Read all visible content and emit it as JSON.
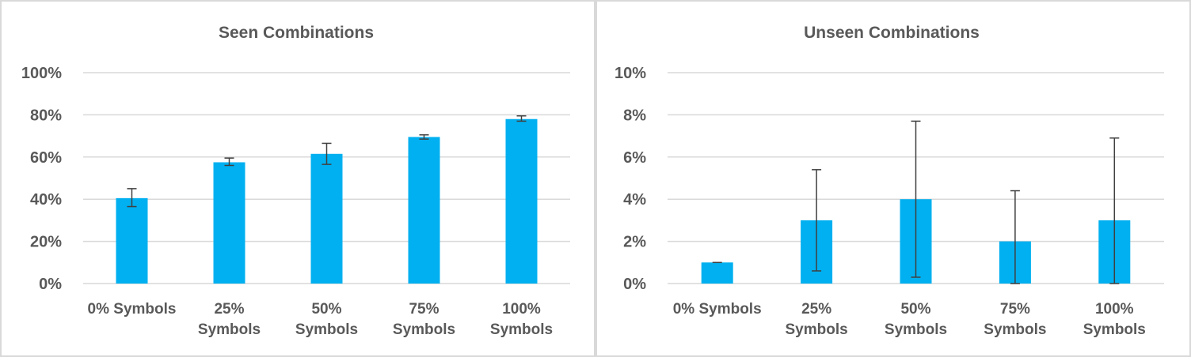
{
  "colors": {
    "bar": "#00b0f0",
    "grid": "#d9d9d9",
    "error_bar": "#404040",
    "text": "#595959"
  },
  "chart_data": [
    {
      "type": "bar",
      "title": "Seen Combinations",
      "categories": [
        [
          "0% Symbols"
        ],
        [
          "25%",
          "Symbols"
        ],
        [
          "50%",
          "Symbols"
        ],
        [
          "75%",
          "Symbols"
        ],
        [
          "100%",
          "Symbols"
        ]
      ],
      "values": [
        40.5,
        57.5,
        61.5,
        69.5,
        78
      ],
      "error_low": [
        36.5,
        56,
        56.5,
        68.5,
        77
      ],
      "error_high": [
        45,
        59.5,
        66.5,
        70.5,
        79.5
      ],
      "ylim": [
        0,
        100
      ],
      "yticks": [
        "0%",
        "20%",
        "40%",
        "60%",
        "80%",
        "100%"
      ],
      "grid": true
    },
    {
      "type": "bar",
      "title": "Unseen Combinations",
      "categories": [
        [
          "0% Symbols"
        ],
        [
          "25%",
          "Symbols"
        ],
        [
          "50%",
          "Symbols"
        ],
        [
          "75%",
          "Symbols"
        ],
        [
          "100%",
          "Symbols"
        ]
      ],
      "values": [
        1,
        3,
        4,
        2,
        3
      ],
      "error_low": [
        1,
        0.6,
        0.3,
        0,
        0
      ],
      "error_high": [
        1,
        5.4,
        7.7,
        4.4,
        6.9
      ],
      "ylim": [
        0,
        10
      ],
      "yticks": [
        "0%",
        "2%",
        "4%",
        "6%",
        "8%",
        "10%"
      ],
      "grid": true
    }
  ]
}
